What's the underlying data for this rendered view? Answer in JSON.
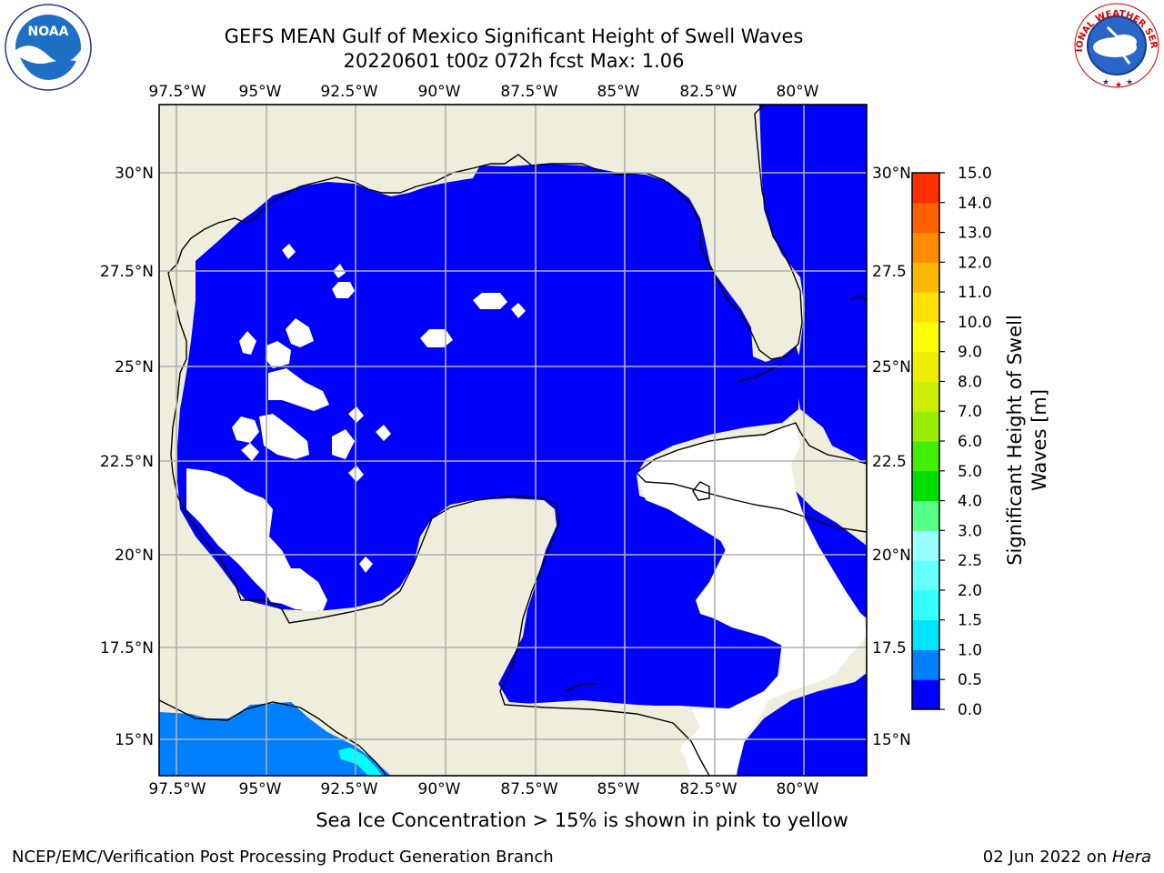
{
  "title": {
    "line1": "GEFS MEAN Gulf of Mexico Significant Height of Swell Waves",
    "line2": "20220601 t00z 072h fcst   Max: 1.06"
  },
  "logos": {
    "noaa": {
      "icon": "noaa-logo",
      "text": "NOAA",
      "ring_text": "NATIONAL OCEANIC AND ATMOSPHERIC ADMINISTRATION · U.S. DEPARTMENT OF COMMERCE"
    },
    "nws": {
      "icon": "nws-logo",
      "ring_text": "NATIONAL WEATHER SERVICE"
    }
  },
  "map": {
    "lon_labels": [
      "97.5°W",
      "95°W",
      "92.5°W",
      "90°W",
      "87.5°W",
      "85°W",
      "82.5°W",
      "80°W"
    ],
    "lat_labels": [
      "30°N",
      "27.5°N",
      "25°N",
      "22.5°N",
      "20°N",
      "17.5°N",
      "15°N"
    ],
    "lat_labels_right": [
      "30°N",
      "27.5",
      "25°N",
      "22.5",
      "20°N",
      "17.5",
      "15°N"
    ],
    "extent": {
      "lon": [
        -98,
        -78.2
      ],
      "lat": [
        14,
        31.8
      ]
    },
    "colors": {
      "land": "#efeddc",
      "ocean_fill": "#0000ff",
      "low_swell": "#0080ff",
      "cyan_swell": "#00ffff",
      "grid": "#b0b0b0"
    }
  },
  "colorbar": {
    "label_line1": "Significant Height of Swell",
    "label_line2": "Waves [m]",
    "ticks": [
      "0.0",
      "0.5",
      "1.0",
      "1.5",
      "2.0",
      "2.5",
      "3.0",
      "4.0",
      "5.0",
      "6.0",
      "7.0",
      "8.0",
      "9.0",
      "10.0",
      "11.0",
      "12.0",
      "13.0",
      "14.0",
      "15.0"
    ],
    "colors": [
      "#0000ff",
      "#0080ff",
      "#00e5ff",
      "#33ffff",
      "#66ffff",
      "#99ffff",
      "#55ff88",
      "#00dd00",
      "#44ee00",
      "#99ee00",
      "#ccee00",
      "#eeee00",
      "#ffff00",
      "#ffe000",
      "#ffb800",
      "#ff8c00",
      "#ff6000",
      "#ff3000",
      "#ff0000"
    ]
  },
  "footer": {
    "note": "Sea Ice Concentration > 15% is shown in pink to yellow",
    "credit": "NCEP/EMC/Verification Post Processing Product Generation Branch",
    "date": "02 Jun 2022 on ",
    "host": "Hera"
  }
}
